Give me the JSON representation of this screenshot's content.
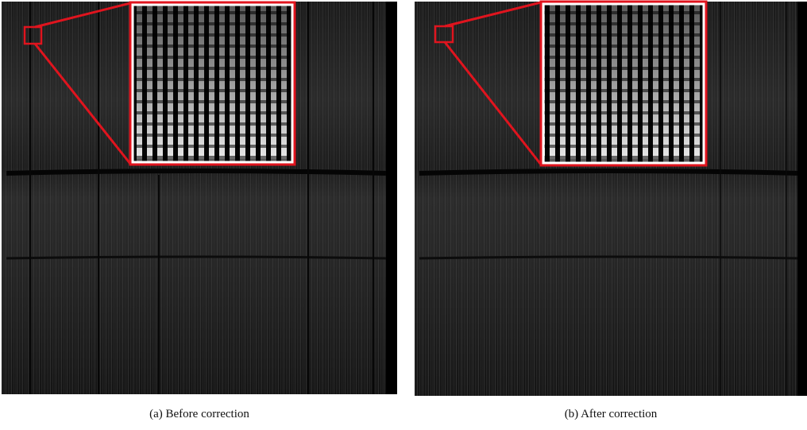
{
  "figure": {
    "panels": [
      {
        "caption": "(a) Before correction"
      },
      {
        "caption": "(b) After correction"
      }
    ]
  }
}
